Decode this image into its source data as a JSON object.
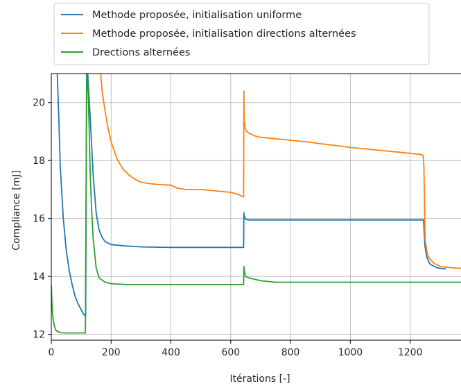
{
  "chart_data": {
    "type": "line",
    "title": "",
    "xlabel": "Itérations [-]",
    "ylabel": "Compliance [mJ]",
    "xlim": [
      0,
      1370
    ],
    "ylim": [
      11.8,
      21.0
    ],
    "xticks": [
      0,
      200,
      400,
      600,
      800,
      1000,
      1200
    ],
    "yticks": [
      12,
      14,
      16,
      18,
      20
    ],
    "xtick_labels": [
      "0",
      "200",
      "400",
      "600",
      "800",
      "1000",
      "1200"
    ],
    "ytick_labels": [
      "12",
      "14",
      "16",
      "18",
      "20"
    ],
    "grid": true,
    "legend_position": "above plot, left",
    "series": [
      {
        "name": "Methode proposée, initialisation uniforme",
        "color": "#1f77b4",
        "x": [
          20,
          25,
          30,
          40,
          50,
          60,
          70,
          80,
          90,
          100,
          108,
          112,
          115,
          118,
          120,
          122,
          130,
          140,
          150,
          160,
          170,
          180,
          200,
          250,
          300,
          400,
          500,
          600,
          643,
          644,
          645,
          650,
          660,
          680,
          700,
          800,
          900,
          1000,
          1100,
          1200,
          1245,
          1247,
          1250,
          1255,
          1260,
          1265,
          1270,
          1280,
          1290,
          1300,
          1310,
          1320
        ],
        "y": [
          21.0,
          19.5,
          17.8,
          16.0,
          14.9,
          14.2,
          13.7,
          13.3,
          13.05,
          12.85,
          12.7,
          12.65,
          12.65,
          21.0,
          21.0,
          21.0,
          19.5,
          17.5,
          16.2,
          15.6,
          15.35,
          15.2,
          15.1,
          15.05,
          15.02,
          15.0,
          15.0,
          15.0,
          15.0,
          16.2,
          16.1,
          15.97,
          15.95,
          15.95,
          15.95,
          15.95,
          15.95,
          15.95,
          15.95,
          15.95,
          15.95,
          15.5,
          15.0,
          14.7,
          14.55,
          14.45,
          14.4,
          14.35,
          14.3,
          14.28,
          14.27,
          14.26
        ]
      },
      {
        "name": "Methode proposée, initialisation directions alternées",
        "color": "#ff7f0e",
        "x": [
          165,
          170,
          180,
          190,
          200,
          220,
          240,
          260,
          280,
          300,
          330,
          360,
          400,
          420,
          450,
          500,
          550,
          600,
          620,
          640,
          643,
          644,
          645,
          650,
          660,
          680,
          700,
          750,
          800,
          850,
          900,
          950,
          1000,
          1050,
          1100,
          1150,
          1200,
          1240,
          1244,
          1246,
          1248,
          1250,
          1255,
          1260,
          1270,
          1280,
          1290,
          1300,
          1320,
          1340,
          1370
        ],
        "y": [
          21.0,
          20.4,
          19.7,
          19.1,
          18.65,
          18.05,
          17.7,
          17.5,
          17.35,
          17.25,
          17.2,
          17.17,
          17.15,
          17.05,
          17.0,
          17.0,
          16.95,
          16.9,
          16.85,
          16.75,
          16.75,
          20.4,
          19.4,
          19.05,
          18.95,
          18.85,
          18.8,
          18.75,
          18.7,
          18.65,
          18.58,
          18.52,
          18.45,
          18.4,
          18.35,
          18.3,
          18.25,
          18.2,
          18.15,
          17.8,
          16.5,
          15.3,
          14.9,
          14.7,
          14.55,
          14.45,
          14.4,
          14.35,
          14.32,
          14.3,
          14.28
        ]
      },
      {
        "name": "Drections alternées",
        "color": "#2ca02c",
        "x": [
          0,
          2,
          5,
          10,
          15,
          20,
          30,
          40,
          60,
          80,
          100,
          110,
          114,
          116,
          118,
          120,
          122,
          125,
          130,
          135,
          140,
          150,
          160,
          180,
          200,
          250,
          300,
          400,
          500,
          600,
          643,
          644,
          645,
          650,
          660,
          680,
          700,
          750,
          800,
          900,
          1000,
          1100,
          1200,
          1300,
          1370
        ],
        "y": [
          13.7,
          13.1,
          12.6,
          12.3,
          12.15,
          12.1,
          12.07,
          12.05,
          12.05,
          12.05,
          12.05,
          12.05,
          12.05,
          16.0,
          20.0,
          21.0,
          21.0,
          19.8,
          17.6,
          16.3,
          15.3,
          14.3,
          13.95,
          13.8,
          13.75,
          13.72,
          13.72,
          13.72,
          13.72,
          13.72,
          13.72,
          14.35,
          14.2,
          14.0,
          13.95,
          13.9,
          13.85,
          13.8,
          13.8,
          13.8,
          13.8,
          13.8,
          13.8,
          13.8,
          13.8
        ]
      }
    ]
  }
}
